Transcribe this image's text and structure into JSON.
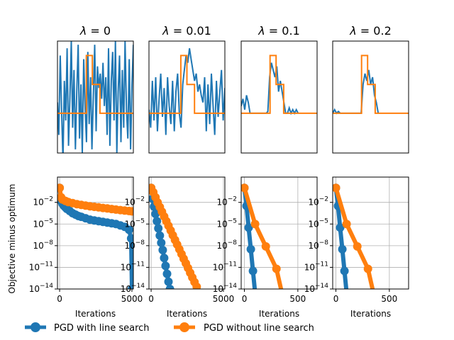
{
  "chart_data": [
    {
      "type": "line",
      "title": "λ = 0",
      "title_parts": {
        "greek": "λ",
        "rest": " = 0"
      },
      "xlabel": "",
      "ylabel": "",
      "axis": "hidden",
      "ylim": [
        -1.1,
        2.0
      ],
      "series": [
        {
          "name": "blue signal",
          "color": "#1f77b4",
          "y": [
            0.3,
            -0.6,
            1.6,
            0.1,
            -1.3,
            0.9,
            -0.2,
            1.8,
            -0.9,
            0.4,
            2.0,
            -0.4,
            1.2,
            -1.0,
            0.6,
            1.9,
            -0.7,
            0.8,
            -1.1,
            1.5,
            0.2,
            -0.8,
            1.7,
            -0.3,
            1.0,
            -1.0,
            0.5,
            1.9,
            -0.5,
            1.3,
            0.7,
            1.1,
            0.4,
            1.4,
            0.2,
            1.0,
            -0.6,
            1.8,
            -0.9,
            0.9,
            1.7,
            -0.2,
            2.0,
            -1.1,
            0.6,
            1.6,
            -0.8,
            1.2,
            -0.4,
            2.0,
            0.1,
            -0.7,
            1.5,
            -1.0,
            0.8,
            1.9
          ]
        },
        {
          "name": "orange true signal",
          "color": "#ff7f0e",
          "steps": [
            [
              0,
              0
            ],
            [
              0.38,
              0
            ],
            [
              0.38,
              1.6
            ],
            [
              0.46,
              1.6
            ],
            [
              0.46,
              0.8
            ],
            [
              0.56,
              0.8
            ],
            [
              0.56,
              0
            ],
            [
              1,
              0
            ]
          ]
        }
      ]
    },
    {
      "type": "line",
      "title": "λ = 0.01",
      "title_parts": {
        "greek": "λ",
        "rest": " = 0.01"
      },
      "axis": "hidden",
      "ylim": [
        -1.1,
        2.0
      ],
      "series": [
        {
          "name": "blue signal",
          "color": "#1f77b4",
          "y": [
            0.1,
            -0.4,
            0.9,
            -0.2,
            1.0,
            -0.5,
            0.4,
            1.1,
            -0.1,
            0.7,
            -0.6,
            1.0,
            0.2,
            -0.3,
            0.9,
            -0.5,
            0.6,
            1.1,
            0.0,
            -0.4,
            0.8,
            1.2,
            1.6,
            1.4,
            1.8,
            1.5,
            1.2,
            0.9,
            1.1,
            0.6,
            0.8,
            0.5,
            0.3,
            1.0,
            -0.5,
            0.8,
            -0.3,
            1.1,
            0.2,
            -0.6,
            0.9,
            -0.1,
            0.6,
            1.2,
            -0.2,
            0.7
          ]
        },
        {
          "name": "orange true signal",
          "color": "#ff7f0e",
          "steps": [
            [
              0,
              0
            ],
            [
              0.42,
              0
            ],
            [
              0.42,
              1.6
            ],
            [
              0.5,
              1.6
            ],
            [
              0.5,
              0.8
            ],
            [
              0.6,
              0.8
            ],
            [
              0.6,
              0
            ],
            [
              1,
              0
            ]
          ]
        }
      ]
    },
    {
      "type": "line",
      "title": "λ = 0.1",
      "title_parts": {
        "greek": "λ",
        "rest": " = 0.1"
      },
      "axis": "hidden",
      "ylim": [
        -1.1,
        2.0
      ],
      "series": [
        {
          "name": "blue signal",
          "color": "#1f77b4",
          "x_range": [
            0,
            0.75
          ],
          "y": [
            0.2,
            0.4,
            0.1,
            0.5,
            0.3,
            0.0,
            0.0,
            0.0,
            0.0,
            0.0,
            0.0,
            0.0,
            0.0,
            0.0,
            0.0,
            0.05,
            1.0,
            1.4,
            1.2,
            1.0,
            1.3,
            0.6,
            0.9,
            0.6,
            0.3,
            0.0,
            0.0,
            0.15,
            0.0,
            0.1,
            0.0,
            0.1,
            0.0
          ]
        },
        {
          "name": "orange true signal",
          "color": "#ff7f0e",
          "steps": [
            [
              0,
              0
            ],
            [
              0.38,
              0
            ],
            [
              0.38,
              1.6
            ],
            [
              0.46,
              1.6
            ],
            [
              0.46,
              0.8
            ],
            [
              0.56,
              0.8
            ],
            [
              0.56,
              0
            ],
            [
              1,
              0
            ]
          ]
        }
      ]
    },
    {
      "type": "line",
      "title": "λ = 0.2",
      "title_parts": {
        "greek": "λ",
        "rest": " = 0.2"
      },
      "axis": "hidden",
      "ylim": [
        -1.1,
        2.0
      ],
      "series": [
        {
          "name": "blue signal",
          "color": "#1f77b4",
          "x_range": [
            0,
            0.6
          ],
          "y": [
            0.0,
            0.1,
            0.0,
            0.05,
            0.0,
            0.0,
            0.0,
            0.0,
            0.0,
            0.0,
            0.0,
            0.0,
            0.0,
            0.0,
            0.0,
            0.0,
            0.8,
            1.1,
            0.9,
            1.2,
            0.8,
            1.0,
            0.5,
            0.3,
            0.0
          ]
        },
        {
          "name": "orange true signal",
          "color": "#ff7f0e",
          "steps": [
            [
              0,
              0
            ],
            [
              0.38,
              0
            ],
            [
              0.38,
              1.6
            ],
            [
              0.46,
              1.6
            ],
            [
              0.46,
              0.8
            ],
            [
              0.56,
              0.8
            ],
            [
              0.56,
              0
            ],
            [
              1,
              0
            ]
          ]
        }
      ]
    },
    {
      "type": "line",
      "title": "",
      "xlabel": "Iterations",
      "ylabel": "Objective minus optimum",
      "yscale": "log",
      "xlim": [
        -150,
        5100
      ],
      "ylim_exp": [
        -14,
        1.5
      ],
      "grid": true,
      "xticks": [
        0,
        5000
      ],
      "xtick_labels": [
        "0",
        "5000"
      ],
      "yticks_exp": [
        -2,
        -5,
        -8,
        -11,
        -14
      ],
      "series": [
        {
          "name": "PGD with line search",
          "color": "#1f77b4",
          "marker": "o",
          "linewidth": 6,
          "x": [
            0,
            100,
            200,
            300,
            400,
            500,
            700,
            900,
            1100,
            1300,
            1500,
            1800,
            2100,
            2400,
            2700,
            3000,
            3300,
            3600,
            3900,
            4200,
            4500,
            4800,
            4950,
            5000
          ],
          "y_exp": [
            0,
            -1.8,
            -2.2,
            -2.5,
            -2.7,
            -2.9,
            -3.2,
            -3.5,
            -3.7,
            -3.9,
            -4.0,
            -4.2,
            -4.4,
            -4.5,
            -4.6,
            -4.7,
            -4.8,
            -4.9,
            -5.0,
            -5.2,
            -5.4,
            -5.8,
            -7,
            -14
          ]
        },
        {
          "name": "PGD without line search",
          "color": "#ff7f0e",
          "marker": "o",
          "linewidth": 6,
          "x": [
            0,
            100,
            200,
            400,
            600,
            900,
            1200,
            1500,
            1800,
            2100,
            2400,
            2700,
            3000,
            3300,
            3600,
            3900,
            4200,
            4500,
            4800,
            5000
          ],
          "y_exp": [
            0,
            -1.3,
            -1.6,
            -1.8,
            -1.95,
            -2.1,
            -2.25,
            -2.35,
            -2.45,
            -2.55,
            -2.62,
            -2.7,
            -2.78,
            -2.85,
            -2.92,
            -3.0,
            -3.07,
            -3.13,
            -3.2,
            -3.25
          ]
        }
      ]
    },
    {
      "type": "line",
      "xlabel": "Iterations",
      "yscale": "log",
      "xlim": [
        -150,
        5100
      ],
      "ylim_exp": [
        -14,
        1.5
      ],
      "grid": true,
      "xticks": [
        0,
        5000
      ],
      "xtick_labels": [
        "0",
        "5000"
      ],
      "yticks_exp": [
        -2,
        -5,
        -8,
        -11,
        -14
      ],
      "series": [
        {
          "name": "PGD with line search",
          "color": "#1f77b4",
          "marker": "o",
          "linewidth": 6,
          "x": [
            0,
            100,
            200,
            300,
            400,
            500,
            600,
            700,
            800,
            900,
            1000,
            1100,
            1200,
            1300
          ],
          "y_exp": [
            0,
            -1.5,
            -2.6,
            -3.6,
            -4.6,
            -5.6,
            -6.6,
            -7.6,
            -8.6,
            -9.7,
            -10.8,
            -11.9,
            -13.0,
            -14.0
          ]
        },
        {
          "name": "PGD without line search",
          "color": "#ff7f0e",
          "marker": "o",
          "linewidth": 6,
          "x": [
            0,
            150,
            300,
            450,
            600,
            750,
            900,
            1050,
            1200,
            1350,
            1500,
            1650,
            1800,
            1950,
            2100,
            2250,
            2400,
            2550,
            2700,
            2850,
            3000,
            3150
          ],
          "y_exp": [
            0,
            -0.6,
            -1.3,
            -2.0,
            -2.65,
            -3.3,
            -3.95,
            -4.6,
            -5.25,
            -5.9,
            -6.55,
            -7.2,
            -7.85,
            -8.5,
            -9.15,
            -9.8,
            -10.45,
            -11.1,
            -11.75,
            -12.4,
            -13.05,
            -13.7
          ]
        }
      ]
    },
    {
      "type": "line",
      "xlabel": "Iterations",
      "yscale": "log",
      "xlim": [
        -30,
        680
      ],
      "ylim_exp": [
        -14,
        1.5
      ],
      "grid": true,
      "xticks": [
        0,
        500
      ],
      "xtick_labels": [
        "0",
        "500"
      ],
      "yticks_exp": [
        -2,
        -5,
        -8,
        -11,
        -14
      ],
      "series": [
        {
          "name": "PGD with line search",
          "color": "#1f77b4",
          "marker": "o",
          "linewidth": 6,
          "x": [
            0,
            20,
            40,
            60,
            80,
            100
          ],
          "y_exp": [
            0,
            -2.5,
            -5.5,
            -8.5,
            -11.5,
            -14.5
          ]
        },
        {
          "name": "PGD without line search",
          "color": "#ff7f0e",
          "marker": "o",
          "linewidth": 6,
          "x": [
            0,
            100,
            200,
            300,
            350
          ],
          "y_exp": [
            0,
            -5.0,
            -8.1,
            -11.2,
            -14.5
          ]
        }
      ]
    },
    {
      "type": "line",
      "xlabel": "Iterations",
      "yscale": "log",
      "xlim": [
        -30,
        680
      ],
      "ylim_exp": [
        -14,
        1.5
      ],
      "grid": true,
      "xticks": [
        0,
        500
      ],
      "xtick_labels": [
        "0",
        "500"
      ],
      "yticks_exp": [
        -2,
        -5,
        -8,
        -11,
        -14
      ],
      "series": [
        {
          "name": "PGD with line search",
          "color": "#1f77b4",
          "marker": "o",
          "linewidth": 6,
          "x": [
            0,
            20,
            40,
            60,
            80,
            100
          ],
          "y_exp": [
            0,
            -2.5,
            -5.5,
            -8.5,
            -11.5,
            -14.5
          ]
        },
        {
          "name": "PGD without line search",
          "color": "#ff7f0e",
          "marker": "o",
          "linewidth": 6,
          "x": [
            0,
            100,
            200,
            300,
            350
          ],
          "y_exp": [
            0,
            -5.0,
            -8.1,
            -11.2,
            -14.5
          ]
        }
      ]
    }
  ],
  "legend": {
    "placement": "bottom-left",
    "items": [
      {
        "label": "PGD with line search",
        "color": "#1f77b4"
      },
      {
        "label": "PGD without line search",
        "color": "#ff7f0e"
      }
    ]
  },
  "tick_text": {
    "base": "10",
    "minus": "−"
  }
}
